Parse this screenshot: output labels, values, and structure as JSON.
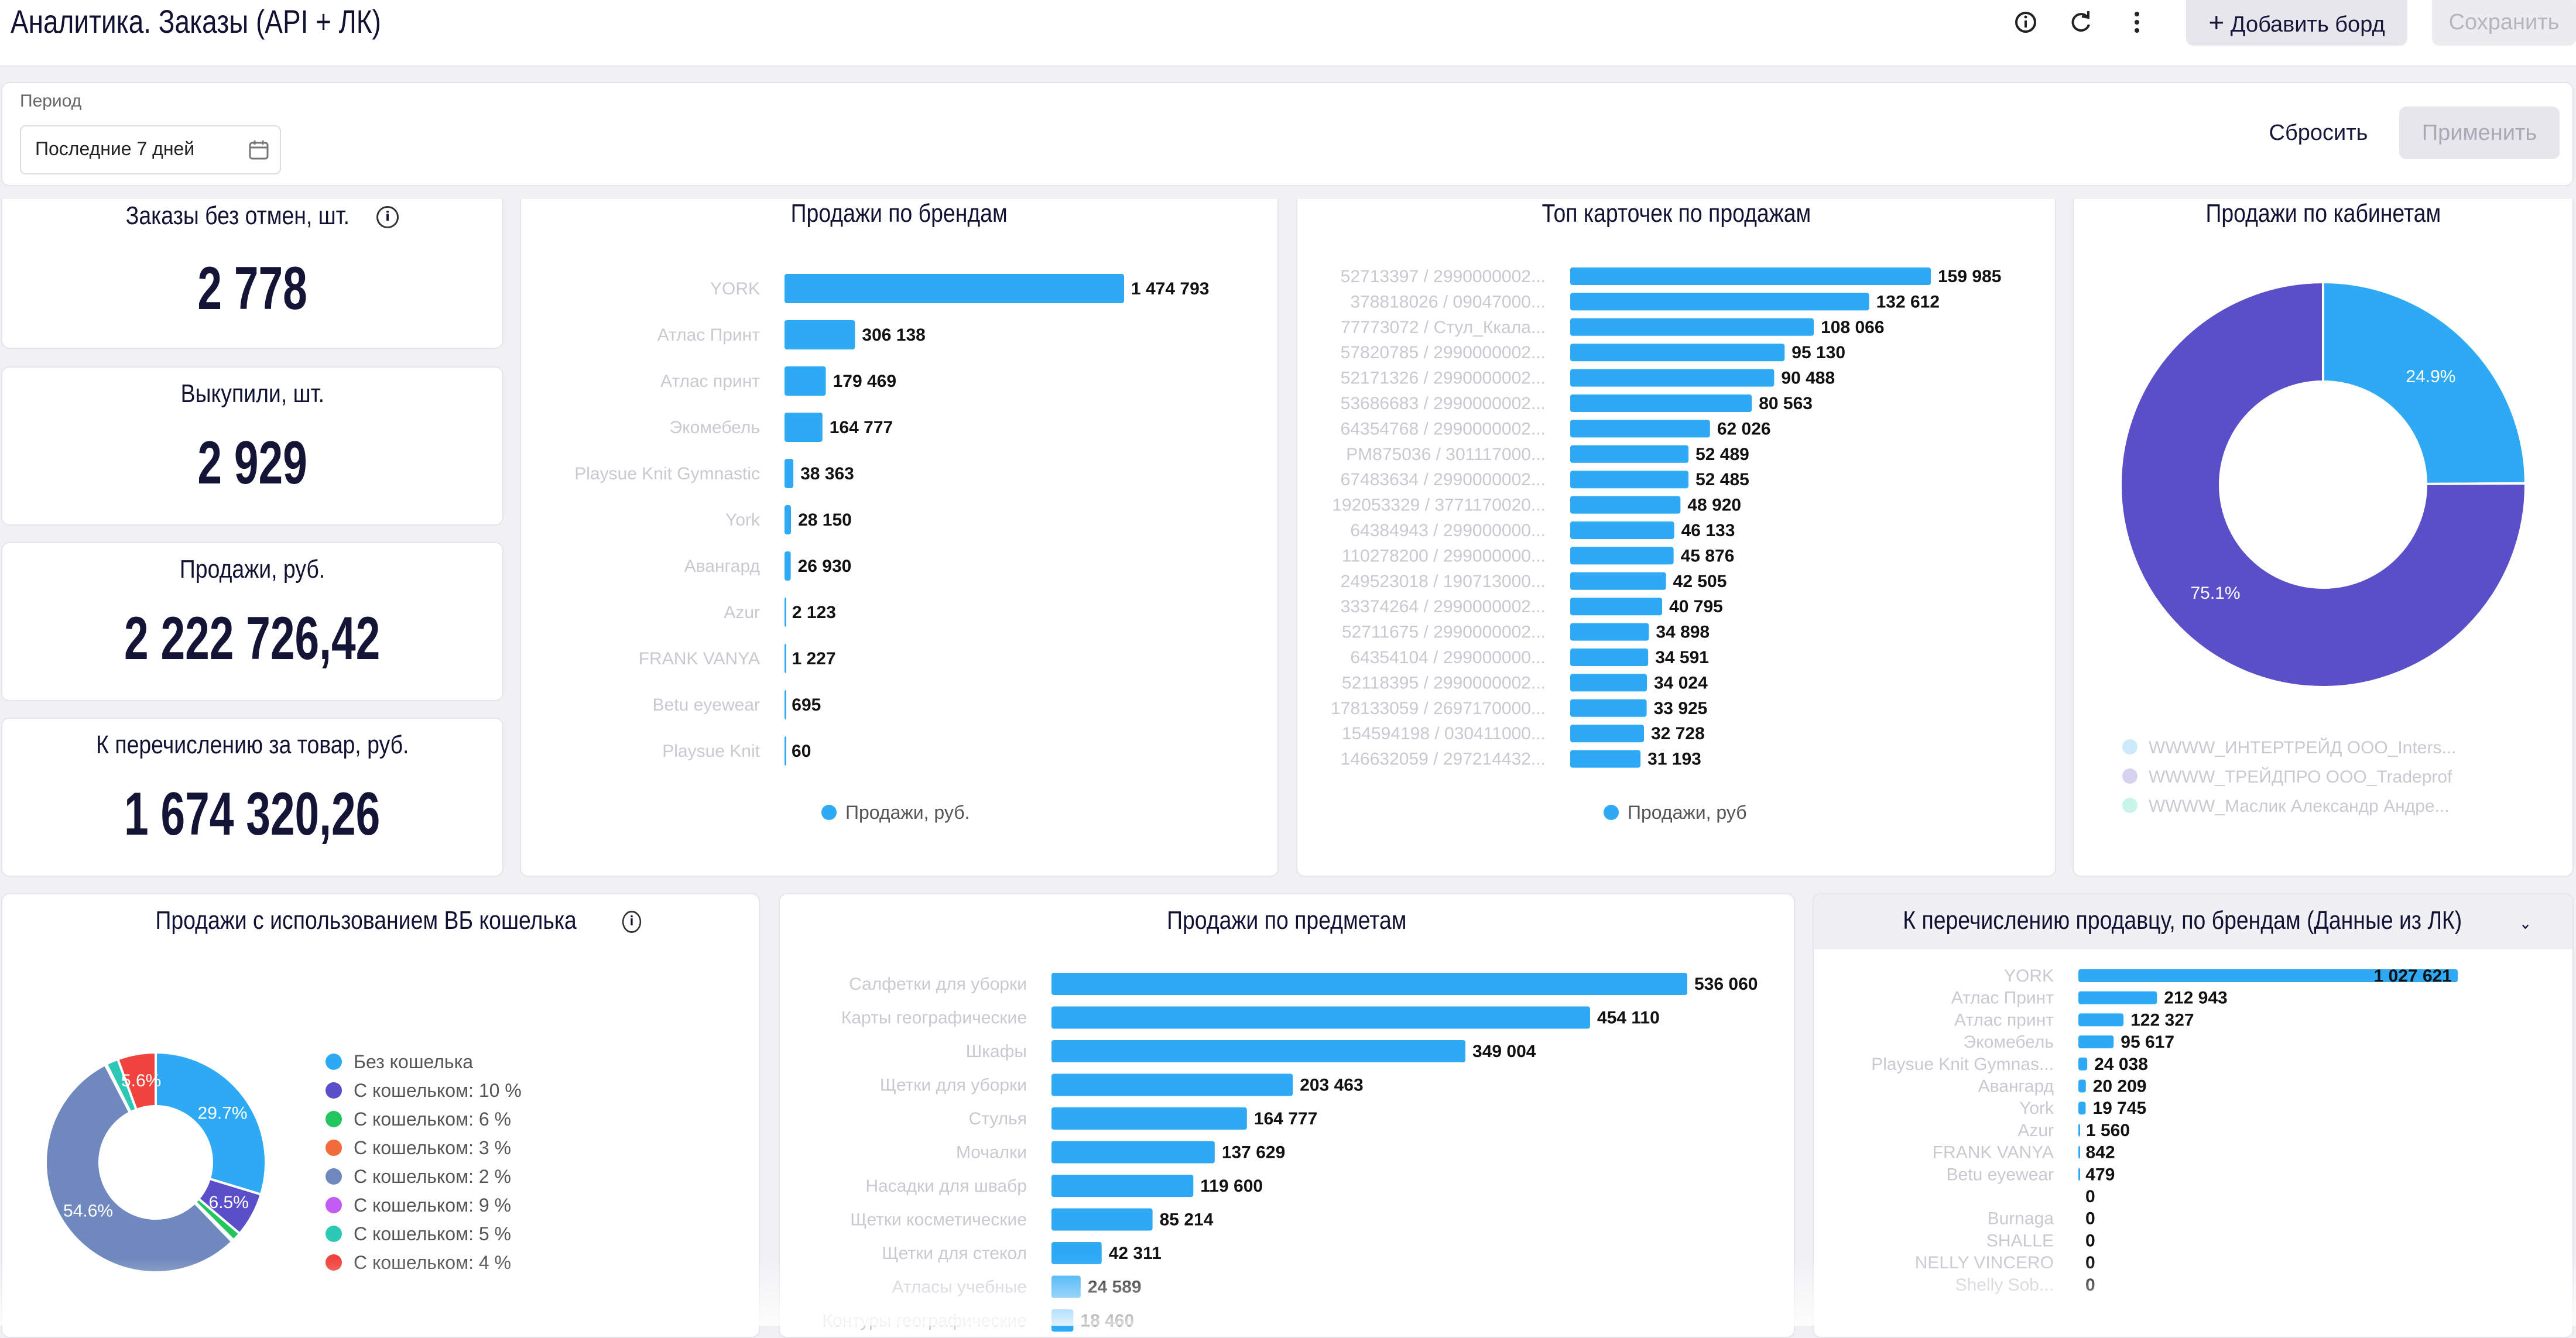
{
  "header": {
    "title": "Аналитика. Заказы (API + ЛК)",
    "add_board_label": "Добавить борд",
    "save_label": "Сохранить",
    "icons": [
      "info-icon",
      "refresh-icon",
      "more-vertical-icon",
      "plus-icon"
    ]
  },
  "filter": {
    "period_label": "Период",
    "period_value": "Последние 7 дней",
    "reset_label": "Сбросить",
    "apply_label": "Применить"
  },
  "kpis": [
    {
      "title": "Заказы без отмен, шт.",
      "value": "2 778",
      "info": true
    },
    {
      "title": "Выкупили, шт.",
      "value": "2 929"
    },
    {
      "title": "Продажи, руб.",
      "value": "2 222 726,42"
    },
    {
      "title": "К перечислению за товар, руб.",
      "value": "1 674 320,26"
    }
  ],
  "colors": {
    "bar": "#2eaaf5",
    "purple": "#5a4fc9",
    "slate": "#6f88bd",
    "red": "#f0433d",
    "green": "#22c55e",
    "orange": "#f26b3a",
    "violet": "#c35cf2",
    "teal": "#2ec9b5"
  },
  "chart_data": [
    {
      "id": "brands",
      "type": "bar",
      "title": "Продажи по брендам",
      "categories": [
        "YORK",
        "Атлас Принт",
        "Атлас принт",
        "Экомебель",
        "Playsue Knit Gymnastic",
        "York",
        "Авангард",
        "Azur",
        "FRANK VANYA",
        "Betu eyewear",
        "Playsue Knit"
      ],
      "values": [
        1474793,
        306138,
        179469,
        164777,
        38363,
        28150,
        26930,
        2123,
        1227,
        695,
        60
      ],
      "value_labels": [
        "1 474 793",
        "306 138",
        "179 469",
        "164 777",
        "38 363",
        "28 150",
        "26 930",
        "2 123",
        "1 227",
        "695",
        "60"
      ],
      "series": [
        {
          "name": "Продажи, руб.",
          "values": [
            1474793,
            306138,
            179469,
            164777,
            38363,
            28150,
            26930,
            2123,
            1227,
            695,
            60
          ]
        }
      ],
      "legend": "bottom"
    },
    {
      "id": "top_cards",
      "type": "bar",
      "title": "Топ карточек по продажам",
      "categories": [
        "52713397 / 2990000002...",
        "378818026 / 09047000...",
        "77773072 / Стул_Ккала...",
        "57820785 / 2990000002...",
        "52171326 / 2990000002...",
        "53686683 / 2990000002...",
        "64354768 / 2990000002...",
        "PM875036 / 301117000...",
        "67483634 / 2990000002...",
        "192053329 / 3771170020...",
        "64384943 / 299000000...",
        "110278200 / 299000000...",
        "249523018 / 190713000...",
        "33374264 / 2990000002...",
        "52711675 / 2990000002...",
        "64354104 / 299000000...",
        "52118395 / 2990000002...",
        "178133059 / 2697170000...",
        "154594198 / 030411000...",
        "146632059 / 297214432..."
      ],
      "values": [
        159985,
        132612,
        108066,
        95130,
        90488,
        80563,
        62026,
        52489,
        52485,
        48920,
        46133,
        45876,
        42505,
        40795,
        34898,
        34591,
        34024,
        33925,
        32728,
        31193
      ],
      "value_labels": [
        "159 985",
        "132 612",
        "108 066",
        "95 130",
        "90 488",
        "80 563",
        "62 026",
        "52 489",
        "52 485",
        "48 920",
        "46 133",
        "45 876",
        "42 505",
        "40 795",
        "34 898",
        "34 591",
        "34 024",
        "33 925",
        "32 728",
        "31 193"
      ],
      "series": [
        {
          "name": "Продажи, руб",
          "values": [
            159985,
            132612,
            108066,
            95130,
            90488,
            80563,
            62026,
            52489,
            52485,
            48920,
            46133,
            45876,
            42505,
            40795,
            34898,
            34591,
            34024,
            33925,
            32728,
            31193
          ]
        }
      ],
      "legend": "bottom"
    },
    {
      "id": "cabinets",
      "type": "pie",
      "title": "Продажи по кабинетам",
      "categories": [
        "WWWW_ИНТЕРТРЕЙД ООО_Inters...",
        "WWWW_ТРЕЙДПРО ООО_Tradeprof",
        "WWWW_Маслик Александр Андре..."
      ],
      "values": [
        24.9,
        75.1,
        0.0
      ],
      "value_labels": [
        "24.9%",
        "75.1%",
        ""
      ],
      "legend": "bottom"
    },
    {
      "id": "wallet",
      "type": "pie",
      "title": "Продажи с использованием ВБ кошелька",
      "categories": [
        "Без кошелька",
        "С кошельком: 10 %",
        "С кошельком: 6 %",
        "С кошельком: 3 %",
        "С кошельком: 2 %",
        "С кошельком: 9 %",
        "С кошельком: 5 %",
        "С кошельком: 4 %"
      ],
      "values": [
        29.7,
        6.5,
        1.3,
        0.3,
        54.6,
        0.2,
        1.8,
        5.6
      ],
      "value_labels": [
        "29.7%",
        "6.5%",
        "",
        "",
        "54.6%",
        "",
        "",
        "5.6%"
      ],
      "legend": "right"
    },
    {
      "id": "subjects",
      "type": "bar",
      "title": "Продажи по предметам",
      "categories": [
        "Салфетки для уборки",
        "Карты географические",
        "Шкафы",
        "Щетки для уборки",
        "Стулья",
        "Мочалки",
        "Насадки для швабр",
        "Щетки косметические",
        "Щетки для стекол",
        "Атласы учебные",
        "Контуры географические"
      ],
      "values": [
        536060,
        454110,
        349004,
        203463,
        164777,
        137629,
        119600,
        85214,
        42311,
        24589,
        18460
      ],
      "value_labels": [
        "536 060",
        "454 110",
        "349 004",
        "203 463",
        "164 777",
        "137 629",
        "119 600",
        "85 214",
        "42 311",
        "24 589",
        "18 460"
      ]
    },
    {
      "id": "payout_brands",
      "type": "bar",
      "title": "К перечислению продавцу, по брендам (Данные из ЛК)",
      "categories": [
        "YORK",
        "Атлас Принт",
        "Атлас принт",
        "Экомебель",
        "Playsue Knit Gymnas...",
        "Авангард",
        "York",
        "Azur",
        "FRANK VANYA",
        "Betu eyewear",
        "",
        "Burnaga",
        "SHALLE",
        "NELLY VINCERO",
        "Shelly Sob..."
      ],
      "values": [
        1027621,
        212943,
        122327,
        95617,
        24038,
        20209,
        19745,
        1560,
        842,
        479,
        0,
        0,
        0,
        0,
        0
      ],
      "value_labels": [
        "1 027 621",
        "212 943",
        "122 327",
        "95 617",
        "24 038",
        "20 209",
        "19 745",
        "1 560",
        "842",
        "479",
        "0",
        "0",
        "0",
        "0",
        "0"
      ]
    }
  ]
}
